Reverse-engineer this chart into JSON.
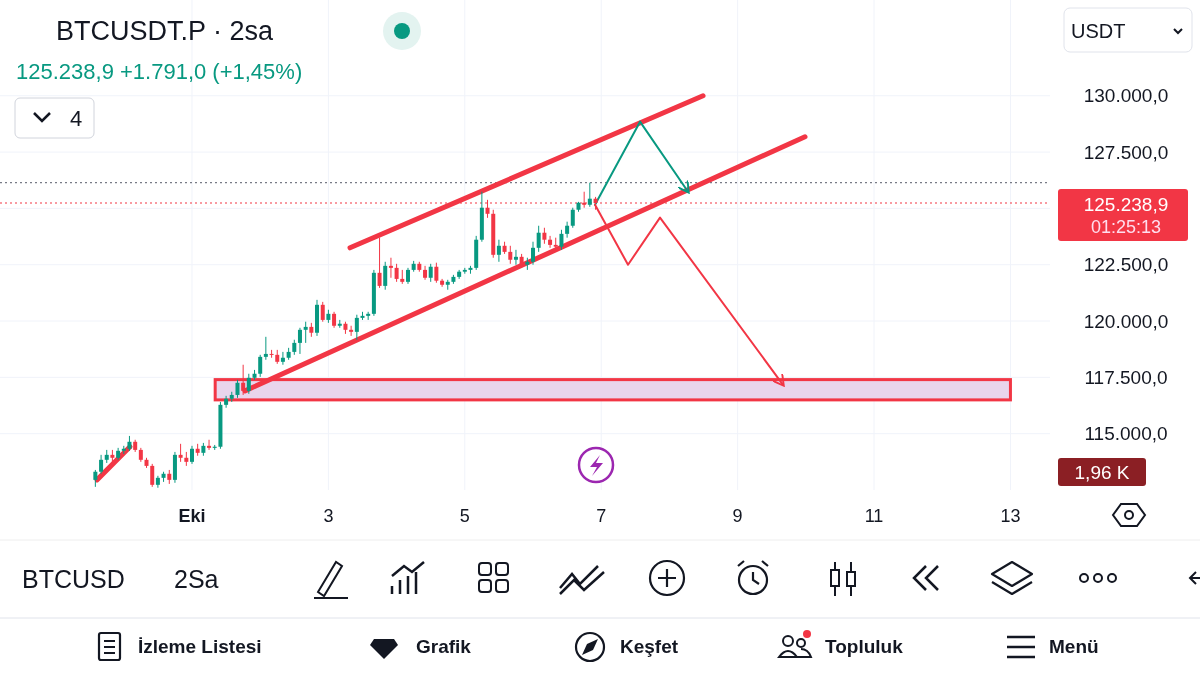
{
  "chart_data": {
    "type": "candlestick",
    "title": "BTCUSDT.P · 2sa",
    "subtitle": "125.238,9 +1.791,0 (+1,45%)",
    "annotations": [
      "4",
      "USDT",
      "01:25:13",
      "1,96 K",
      "BTCUSD",
      "2Sa",
      "İzleme Listesi",
      "Grafik",
      "Keşfet",
      "Topluluk",
      "Menü"
    ],
    "x": [
      -0.417,
      -0.333,
      -0.25,
      -0.167,
      -0.083,
      0,
      0.083,
      0.167,
      0.25,
      0.333,
      0.417,
      0.5,
      0.583,
      0.667,
      0.75,
      0.833,
      0.917,
      1,
      1.083,
      1.167,
      1.25,
      1.333,
      1.417,
      1.5,
      1.583,
      1.667,
      1.75,
      1.833,
      1.917,
      2,
      2.083,
      2.167,
      2.25,
      2.333,
      2.417,
      2.5,
      2.583,
      2.667,
      2.75,
      2.833,
      2.917,
      3,
      3.083,
      3.167,
      3.25,
      3.333,
      3.417,
      3.5,
      3.583,
      3.667,
      3.75,
      3.833,
      3.917,
      4,
      4.083,
      4.167,
      4.25,
      4.333,
      4.417,
      4.5,
      4.583,
      4.667,
      4.75,
      4.833,
      4.917,
      5,
      5.083,
      5.167,
      5.25,
      5.333,
      5.417,
      5.5,
      5.583,
      5.667,
      5.75,
      5.833,
      5.917,
      6,
      6.083,
      6.167,
      6.25,
      6.333,
      6.417,
      6.5,
      6.583,
      6.667,
      6.75,
      6.833,
      6.917
    ],
    "ohlc": [
      [
        112950,
        113390,
        112640,
        113310
      ],
      [
        113310,
        114060,
        113220,
        113840
      ],
      [
        113840,
        114280,
        113700,
        114060
      ],
      [
        114060,
        114280,
        113750,
        113930
      ],
      [
        113930,
        114370,
        113840,
        114240
      ],
      [
        114240,
        114460,
        114100,
        114330
      ],
      [
        114330,
        114900,
        114240,
        114640
      ],
      [
        114640,
        114730,
        114190,
        114280
      ],
      [
        114280,
        114370,
        113750,
        113840
      ],
      [
        113840,
        113930,
        113480,
        113570
      ],
      [
        113570,
        113660,
        112640,
        112730
      ],
      [
        112730,
        113130,
        112600,
        113040
      ],
      [
        113040,
        113310,
        112860,
        113220
      ],
      [
        113220,
        113390,
        112770,
        112950
      ],
      [
        112950,
        114190,
        112820,
        114060
      ],
      [
        114060,
        114550,
        113750,
        113930
      ],
      [
        113930,
        114190,
        113570,
        113750
      ],
      [
        113750,
        114460,
        113660,
        114330
      ],
      [
        114330,
        114550,
        114020,
        114150
      ],
      [
        114150,
        114590,
        114020,
        114460
      ],
      [
        114460,
        114730,
        114280,
        114370
      ],
      [
        114370,
        114500,
        114280,
        114420
      ],
      [
        114420,
        116410,
        114330,
        116280
      ],
      [
        116280,
        116680,
        116150,
        116550
      ],
      [
        116550,
        116860,
        116410,
        116720
      ],
      [
        116720,
        117390,
        116590,
        117260
      ],
      [
        117260,
        118060,
        116720,
        116900
      ],
      [
        116900,
        117660,
        116770,
        117480
      ],
      [
        117480,
        117830,
        117390,
        117660
      ],
      [
        117660,
        118500,
        117520,
        118410
      ],
      [
        118410,
        119300,
        118280,
        118540
      ],
      [
        118540,
        118720,
        118370,
        118500
      ],
      [
        118500,
        118720,
        118100,
        118190
      ],
      [
        118190,
        118630,
        118060,
        118370
      ],
      [
        118370,
        118810,
        118280,
        118630
      ],
      [
        118630,
        119170,
        118500,
        119030
      ],
      [
        119030,
        119700,
        118540,
        119610
      ],
      [
        119610,
        119970,
        119030,
        119740
      ],
      [
        119740,
        119920,
        119300,
        119480
      ],
      [
        119480,
        120940,
        119340,
        120720
      ],
      [
        120720,
        120850,
        119970,
        120050
      ],
      [
        120050,
        120500,
        119920,
        120320
      ],
      [
        120320,
        120410,
        119700,
        119790
      ],
      [
        119790,
        120050,
        119700,
        119880
      ],
      [
        119880,
        119970,
        119430,
        119610
      ],
      [
        119610,
        119790,
        119340,
        119520
      ],
      [
        119520,
        120280,
        119170,
        120140
      ],
      [
        120140,
        120410,
        120050,
        120230
      ],
      [
        120230,
        120410,
        120050,
        120320
      ],
      [
        120320,
        122270,
        120230,
        122140
      ],
      [
        122140,
        123700,
        121470,
        121560
      ],
      [
        121560,
        122630,
        121390,
        122450
      ],
      [
        122450,
        122810,
        121920,
        122360
      ],
      [
        122360,
        122540,
        121740,
        121870
      ],
      [
        121870,
        122270,
        121650,
        121740
      ],
      [
        121740,
        122360,
        121650,
        122270
      ],
      [
        122270,
        122670,
        122190,
        122540
      ],
      [
        122540,
        122630,
        122190,
        122270
      ],
      [
        122270,
        122450,
        121830,
        121920
      ],
      [
        121920,
        122540,
        121740,
        122410
      ],
      [
        122410,
        122590,
        121700,
        121790
      ],
      [
        121790,
        121870,
        121520,
        121610
      ],
      [
        121610,
        121830,
        121390,
        121740
      ],
      [
        121740,
        122050,
        121650,
        121960
      ],
      [
        121960,
        122270,
        121870,
        122190
      ],
      [
        122190,
        122360,
        122100,
        122270
      ],
      [
        122270,
        122450,
        122100,
        122360
      ],
      [
        122360,
        123780,
        122270,
        123610
      ],
      [
        123610,
        125740,
        123520,
        125030
      ],
      [
        125030,
        125380,
        124580,
        124760
      ],
      [
        124760,
        124940,
        122810,
        122940
      ],
      [
        122940,
        123610,
        122630,
        123340
      ],
      [
        123340,
        123520,
        122980,
        123070
      ],
      [
        123070,
        123340,
        122540,
        122720
      ],
      [
        122720,
        123160,
        122500,
        122850
      ],
      [
        122850,
        122980,
        122360,
        122500
      ],
      [
        122500,
        122810,
        122270,
        122630
      ],
      [
        122630,
        123520,
        122500,
        123250
      ],
      [
        123250,
        124230,
        123070,
        123920
      ],
      [
        123920,
        124140,
        123430,
        123610
      ],
      [
        123610,
        123780,
        123250,
        123380
      ],
      [
        123380,
        123700,
        123160,
        123300
      ],
      [
        123300,
        124050,
        123160,
        123870
      ],
      [
        123870,
        124410,
        123700,
        124230
      ],
      [
        124230,
        125030,
        124140,
        124940
      ],
      [
        124940,
        125290,
        124850,
        125250
      ],
      [
        125250,
        125740,
        125030,
        125160
      ],
      [
        125160,
        126140,
        125070,
        125430
      ],
      [
        125430,
        125510,
        124940,
        125238.9
      ]
    ],
    "series": [
      {
        "type": "line",
        "color": "#f23645",
        "x": [
          -0.393,
          0.091
        ],
        "values": [
          112950,
          114420
        ]
      },
      {
        "type": "line",
        "color": "#f23645",
        "x": [
          3.317,
          8.493
        ],
        "values": [
          123250,
          130000
        ]
      },
      {
        "type": "line",
        "color": "#f23645",
        "x": [
          1.777,
          9.988
        ],
        "values": [
          116900,
          128180
        ]
      },
      {
        "type": "line",
        "color": "#089981",
        "x": [
          6.909,
          7.569,
          8.273
        ],
        "values": [
          125160,
          128850,
          125740
        ]
      },
      {
        "type": "line",
        "color": "#f23645",
        "x": [
          6.909,
          7.393,
          7.862,
          9.666
        ],
        "values": [
          125160,
          122500,
          124590,
          117170
        ]
      }
    ],
    "bands": [
      {
        "axis": "y",
        "from": 116500,
        "to": 117400,
        "color": "#f23645"
      }
    ],
    "ref_lines": [
      {
        "axis": "y",
        "value": 125238.9,
        "label": "125.238,9",
        "color": "#f23645",
        "line_style": "dotted"
      },
      {
        "axis": "y",
        "value": 126140,
        "label": null,
        "color": "#787b86",
        "line_style": "dotted"
      }
    ],
    "xlim": [
      -1.815,
      13.58
    ],
    "xticks": [
      {
        "value": 1,
        "label": "Eki"
      },
      3,
      5,
      7,
      9,
      11,
      13
    ],
    "ylim": [
      112500,
      134250
    ],
    "yticks": [
      {
        "value": 115000,
        "label": "115.000,0"
      },
      {
        "value": 117500,
        "label": "117.500,0"
      },
      {
        "value": 120000,
        "label": "120.000,0"
      },
      {
        "value": 122500,
        "label": "122.500,0"
      },
      {
        "value": 125000,
        "label": null
      },
      {
        "value": 127500,
        "label": "127.500,0"
      },
      {
        "value": 130000,
        "label": "130.000,0"
      }
    ],
    "grid": true
  }
}
